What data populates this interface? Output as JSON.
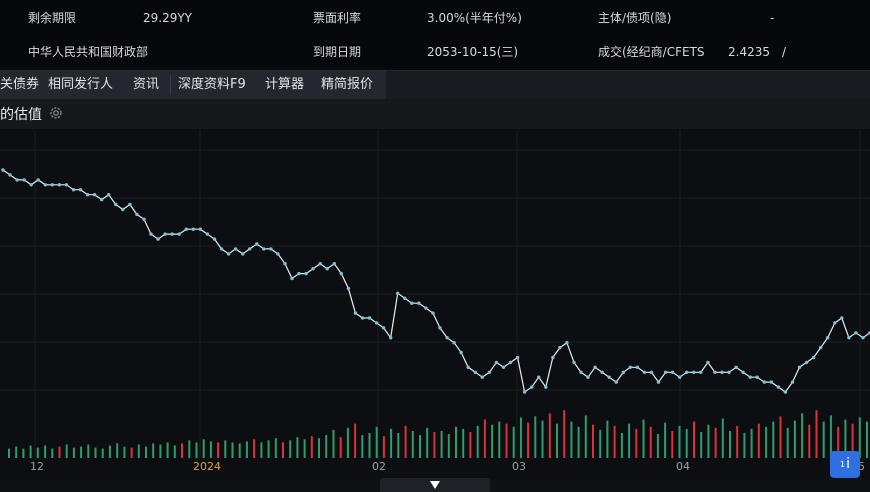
{
  "info": {
    "row1": {
      "remaining_term_label": "剩余期限",
      "remaining_term_value": "29.29YY",
      "coupon_label": "票面利率",
      "coupon_value": "3.00%(半年付%)",
      "rating_label": "主体/债项(隐)",
      "rating_value": "-"
    },
    "row2": {
      "issuer": "中华人民共和国财政部",
      "maturity_label": "到期日期",
      "maturity_value": "2053-10-15(三)",
      "trade_label": "成交(经纪商/CFETS",
      "trade_value": "2.4235",
      "trade_sep": "/"
    }
  },
  "tabs": [
    "关债券",
    "相同发行人",
    "资讯",
    "深度资料F9",
    "计算器",
    "精简报价"
  ],
  "subbar": {
    "title": "的估值",
    "gear_icon": "gear-icon"
  },
  "x_axis_labels": [
    {
      "text": "12",
      "color": "#9aa0a8"
    },
    {
      "text": "2024",
      "color": "#e0a030"
    },
    {
      "text": "02",
      "color": "#9aa0a8"
    },
    {
      "text": "03",
      "color": "#9aa0a8"
    },
    {
      "text": "04",
      "color": "#9aa0a8"
    },
    {
      "text": "5",
      "color": "#9aa0a8"
    }
  ],
  "info_button": {
    "small": "1",
    "label": "i"
  },
  "chart_data": {
    "type": "line",
    "line_color": "#7fc2d8",
    "up_color": "#d8343a",
    "down_color": "#2e9e6a",
    "values": [
      2.81,
      2.8,
      2.79,
      2.79,
      2.78,
      2.79,
      2.78,
      2.78,
      2.78,
      2.78,
      2.77,
      2.77,
      2.76,
      2.76,
      2.75,
      2.76,
      2.74,
      2.73,
      2.74,
      2.72,
      2.71,
      2.68,
      2.67,
      2.68,
      2.68,
      2.68,
      2.69,
      2.69,
      2.69,
      2.68,
      2.67,
      2.65,
      2.64,
      2.65,
      2.64,
      2.65,
      2.66,
      2.65,
      2.65,
      2.64,
      2.62,
      2.59,
      2.6,
      2.6,
      2.61,
      2.62,
      2.61,
      2.62,
      2.6,
      2.57,
      2.52,
      2.51,
      2.51,
      2.5,
      2.49,
      2.47,
      2.56,
      2.55,
      2.54,
      2.54,
      2.53,
      2.52,
      2.49,
      2.47,
      2.46,
      2.44,
      2.41,
      2.4,
      2.39,
      2.4,
      2.42,
      2.41,
      2.42,
      2.43,
      2.36,
      2.37,
      2.39,
      2.37,
      2.43,
      2.45,
      2.46,
      2.42,
      2.4,
      2.39,
      2.41,
      2.4,
      2.39,
      2.38,
      2.4,
      2.41,
      2.41,
      2.4,
      2.4,
      2.38,
      2.4,
      2.4,
      2.39,
      2.4,
      2.4,
      2.4,
      2.42,
      2.4,
      2.4,
      2.4,
      2.41,
      2.4,
      2.39,
      2.39,
      2.38,
      2.38,
      2.37,
      2.36,
      2.38,
      2.41,
      2.42,
      2.43,
      2.45,
      2.47,
      2.5,
      2.51,
      2.47,
      2.48,
      2.47,
      2.48
    ],
    "volumes": [
      {
        "v": 0.18,
        "c": "down"
      },
      {
        "v": 0.22,
        "c": "down"
      },
      {
        "v": 0.18,
        "c": "down"
      },
      {
        "v": 0.24,
        "c": "down"
      },
      {
        "v": 0.2,
        "c": "down"
      },
      {
        "v": 0.24,
        "c": "down"
      },
      {
        "v": 0.18,
        "c": "down"
      },
      {
        "v": 0.22,
        "c": "up"
      },
      {
        "v": 0.26,
        "c": "down"
      },
      {
        "v": 0.2,
        "c": "down"
      },
      {
        "v": 0.22,
        "c": "down"
      },
      {
        "v": 0.26,
        "c": "down"
      },
      {
        "v": 0.2,
        "c": "down"
      },
      {
        "v": 0.18,
        "c": "down"
      },
      {
        "v": 0.24,
        "c": "down"
      },
      {
        "v": 0.28,
        "c": "down"
      },
      {
        "v": 0.22,
        "c": "down"
      },
      {
        "v": 0.2,
        "c": "up"
      },
      {
        "v": 0.26,
        "c": "down"
      },
      {
        "v": 0.22,
        "c": "down"
      },
      {
        "v": 0.28,
        "c": "down"
      },
      {
        "v": 0.26,
        "c": "down"
      },
      {
        "v": 0.3,
        "c": "down"
      },
      {
        "v": 0.24,
        "c": "down"
      },
      {
        "v": 0.28,
        "c": "up"
      },
      {
        "v": 0.34,
        "c": "down"
      },
      {
        "v": 0.3,
        "c": "down"
      },
      {
        "v": 0.36,
        "c": "down"
      },
      {
        "v": 0.32,
        "c": "down"
      },
      {
        "v": 0.3,
        "c": "up"
      },
      {
        "v": 0.34,
        "c": "down"
      },
      {
        "v": 0.3,
        "c": "down"
      },
      {
        "v": 0.28,
        "c": "down"
      },
      {
        "v": 0.32,
        "c": "down"
      },
      {
        "v": 0.36,
        "c": "up"
      },
      {
        "v": 0.3,
        "c": "down"
      },
      {
        "v": 0.34,
        "c": "down"
      },
      {
        "v": 0.38,
        "c": "down"
      },
      {
        "v": 0.3,
        "c": "up"
      },
      {
        "v": 0.34,
        "c": "down"
      },
      {
        "v": 0.4,
        "c": "down"
      },
      {
        "v": 0.36,
        "c": "down"
      },
      {
        "v": 0.42,
        "c": "up"
      },
      {
        "v": 0.38,
        "c": "down"
      },
      {
        "v": 0.44,
        "c": "down"
      },
      {
        "v": 0.54,
        "c": "down"
      },
      {
        "v": 0.4,
        "c": "up"
      },
      {
        "v": 0.58,
        "c": "down"
      },
      {
        "v": 0.66,
        "c": "up"
      },
      {
        "v": 0.44,
        "c": "down"
      },
      {
        "v": 0.48,
        "c": "down"
      },
      {
        "v": 0.6,
        "c": "down"
      },
      {
        "v": 0.42,
        "c": "up"
      },
      {
        "v": 0.56,
        "c": "down"
      },
      {
        "v": 0.48,
        "c": "down"
      },
      {
        "v": 0.62,
        "c": "up"
      },
      {
        "v": 0.52,
        "c": "down"
      },
      {
        "v": 0.44,
        "c": "down"
      },
      {
        "v": 0.58,
        "c": "down"
      },
      {
        "v": 0.5,
        "c": "up"
      },
      {
        "v": 0.52,
        "c": "down"
      },
      {
        "v": 0.46,
        "c": "down"
      },
      {
        "v": 0.6,
        "c": "down"
      },
      {
        "v": 0.56,
        "c": "down"
      },
      {
        "v": 0.5,
        "c": "up"
      },
      {
        "v": 0.62,
        "c": "down"
      },
      {
        "v": 0.74,
        "c": "up"
      },
      {
        "v": 0.64,
        "c": "down"
      },
      {
        "v": 0.7,
        "c": "down"
      },
      {
        "v": 0.66,
        "c": "up"
      },
      {
        "v": 0.6,
        "c": "down"
      },
      {
        "v": 0.78,
        "c": "down"
      },
      {
        "v": 0.68,
        "c": "up"
      },
      {
        "v": 0.8,
        "c": "down"
      },
      {
        "v": 0.72,
        "c": "down"
      },
      {
        "v": 0.86,
        "c": "up"
      },
      {
        "v": 0.66,
        "c": "down"
      },
      {
        "v": 0.92,
        "c": "up"
      },
      {
        "v": 0.7,
        "c": "down"
      },
      {
        "v": 0.6,
        "c": "down"
      },
      {
        "v": 0.82,
        "c": "down"
      },
      {
        "v": 0.64,
        "c": "up"
      },
      {
        "v": 0.54,
        "c": "down"
      },
      {
        "v": 0.72,
        "c": "down"
      },
      {
        "v": 0.62,
        "c": "up"
      },
      {
        "v": 0.48,
        "c": "down"
      },
      {
        "v": 0.66,
        "c": "down"
      },
      {
        "v": 0.56,
        "c": "up"
      },
      {
        "v": 0.74,
        "c": "down"
      },
      {
        "v": 0.6,
        "c": "up"
      },
      {
        "v": 0.46,
        "c": "down"
      },
      {
        "v": 0.68,
        "c": "down"
      },
      {
        "v": 0.52,
        "c": "up"
      },
      {
        "v": 0.62,
        "c": "down"
      },
      {
        "v": 0.56,
        "c": "down"
      },
      {
        "v": 0.7,
        "c": "up"
      },
      {
        "v": 0.5,
        "c": "down"
      },
      {
        "v": 0.64,
        "c": "down"
      },
      {
        "v": 0.58,
        "c": "up"
      },
      {
        "v": 0.76,
        "c": "down"
      },
      {
        "v": 0.52,
        "c": "down"
      },
      {
        "v": 0.62,
        "c": "up"
      },
      {
        "v": 0.48,
        "c": "down"
      },
      {
        "v": 0.56,
        "c": "down"
      },
      {
        "v": 0.66,
        "c": "up"
      },
      {
        "v": 0.6,
        "c": "down"
      },
      {
        "v": 0.7,
        "c": "down"
      },
      {
        "v": 0.8,
        "c": "up"
      },
      {
        "v": 0.58,
        "c": "down"
      },
      {
        "v": 0.72,
        "c": "down"
      },
      {
        "v": 0.86,
        "c": "down"
      },
      {
        "v": 0.64,
        "c": "up"
      },
      {
        "v": 0.92,
        "c": "up"
      },
      {
        "v": 0.7,
        "c": "down"
      },
      {
        "v": 0.82,
        "c": "down"
      },
      {
        "v": 0.6,
        "c": "up"
      },
      {
        "v": 0.74,
        "c": "down"
      },
      {
        "v": 0.66,
        "c": "up"
      },
      {
        "v": 0.78,
        "c": "down"
      },
      {
        "v": 0.7,
        "c": "down"
      }
    ]
  }
}
